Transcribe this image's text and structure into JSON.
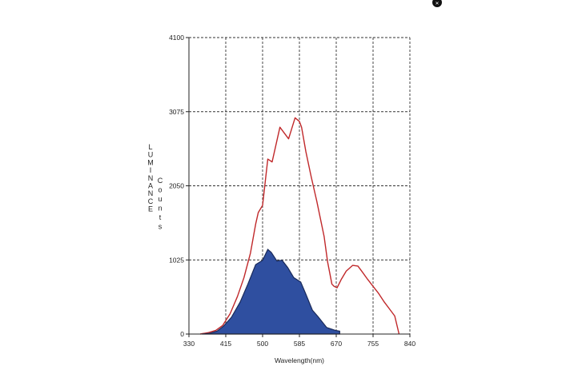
{
  "chart_data": {
    "type": "area",
    "xlabel": "Wavelength(nm)",
    "ylabel_primary": "LUMINANCE",
    "ylabel_secondary": "Counts",
    "xlim": [
      330,
      840
    ],
    "ylim": [
      0,
      4100
    ],
    "x_ticks": [
      330,
      415,
      500,
      585,
      670,
      755,
      840
    ],
    "y_ticks": [
      0,
      1025,
      2050,
      3075,
      4100
    ],
    "grid": true,
    "series": [
      {
        "type": "line",
        "color": "#c0282a",
        "x": [
          356,
          375,
          392,
          408,
          425,
          442,
          457,
          472,
          484,
          490,
          500,
          512,
          522,
          540,
          560,
          575,
          585,
          590,
          600,
          612,
          625,
          642,
          650,
          660,
          665,
          672,
          682,
          693,
          708,
          720,
          730,
          742,
          755,
          768,
          780,
          795,
          805,
          815
        ],
        "y": [
          0,
          20,
          50,
          120,
          280,
          520,
          780,
          1120,
          1520,
          1680,
          1780,
          2420,
          2380,
          2860,
          2700,
          2990,
          2940,
          2860,
          2520,
          2180,
          1840,
          1350,
          1000,
          690,
          660,
          640,
          760,
          870,
          950,
          940,
          860,
          760,
          660,
          560,
          450,
          330,
          250,
          0
        ]
      },
      {
        "type": "area",
        "color": "#2f4fa0",
        "edge": "#1a2a5a",
        "x": [
          360,
          378,
          395,
          410,
          428,
          448,
          466,
          484,
          500,
          512,
          520,
          533,
          545,
          558,
          572,
          588,
          600,
          615,
          628,
          648,
          668,
          678
        ],
        "y": [
          0,
          10,
          40,
          110,
          230,
          440,
          690,
          960,
          1020,
          1170,
          1130,
          1010,
          1020,
          920,
          780,
          720,
          550,
          330,
          240,
          90,
          50,
          40
        ]
      }
    ]
  }
}
